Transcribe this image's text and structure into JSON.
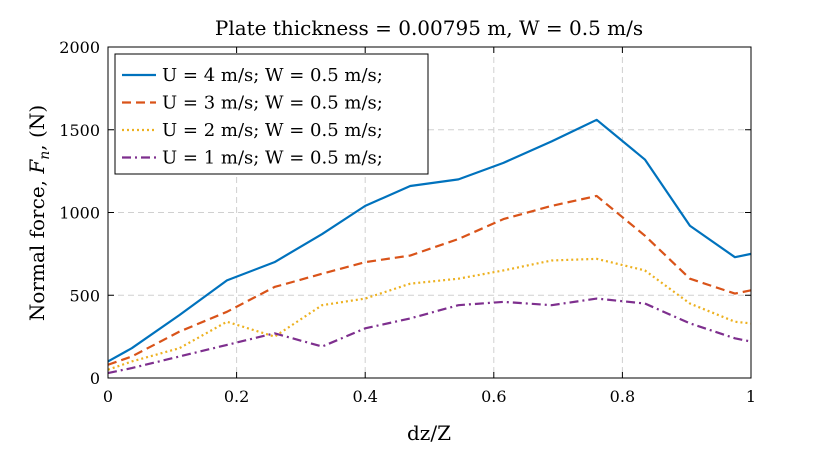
{
  "chart_data": {
    "type": "line",
    "title": "Plate thickness = 0.00795 m, W = 0.5 m/s",
    "xlabel": "dz/Z",
    "ylabel_prefix": "Normal force, ",
    "ylabel_var": "F",
    "ylabel_sub": "n",
    "ylabel_suffix": ", (N)",
    "xlim": [
      0,
      1
    ],
    "ylim": [
      0,
      2000
    ],
    "xticks": [
      0,
      0.2,
      0.4,
      0.6,
      0.8,
      1
    ],
    "xtick_labels": [
      "0",
      "0.2",
      "0.4",
      "0.6",
      "0.8",
      "1"
    ],
    "yticks": [
      0,
      500,
      1000,
      1500,
      2000
    ],
    "ytick_labels": [
      "0",
      "500",
      "1000",
      "1500",
      "2000"
    ],
    "grid": true,
    "legend_position": "top-left",
    "x": [
      0,
      0.037,
      0.111,
      0.185,
      0.259,
      0.333,
      0.4,
      0.47,
      0.545,
      0.615,
      0.69,
      0.76,
      0.835,
      0.905,
      0.975,
      1
    ],
    "series": [
      {
        "name": "U = 4 m/s; W = 0.5 m/s;",
        "color": "#0072BD",
        "style": "solid",
        "values": [
          100,
          180,
          380,
          590,
          700,
          870,
          1040,
          1160,
          1200,
          1300,
          1430,
          1560,
          1320,
          920,
          730,
          750
        ]
      },
      {
        "name": "U = 3 m/s; W = 0.5 m/s;",
        "color": "#D95319",
        "style": "dashed",
        "values": [
          80,
          130,
          280,
          400,
          550,
          630,
          700,
          740,
          840,
          960,
          1040,
          1100,
          860,
          600,
          510,
          530
        ]
      },
      {
        "name": "U = 2 m/s; W = 0.5 m/s;",
        "color": "#EDB120",
        "style": "dotted",
        "values": [
          50,
          100,
          180,
          340,
          250,
          440,
          480,
          570,
          600,
          650,
          710,
          720,
          650,
          450,
          340,
          330
        ]
      },
      {
        "name": "U = 1 m/s; W = 0.5 m/s;",
        "color": "#7E2F8E",
        "style": "dashdot",
        "values": [
          30,
          60,
          130,
          200,
          270,
          190,
          300,
          360,
          440,
          460,
          440,
          480,
          450,
          330,
          240,
          220
        ]
      }
    ]
  }
}
